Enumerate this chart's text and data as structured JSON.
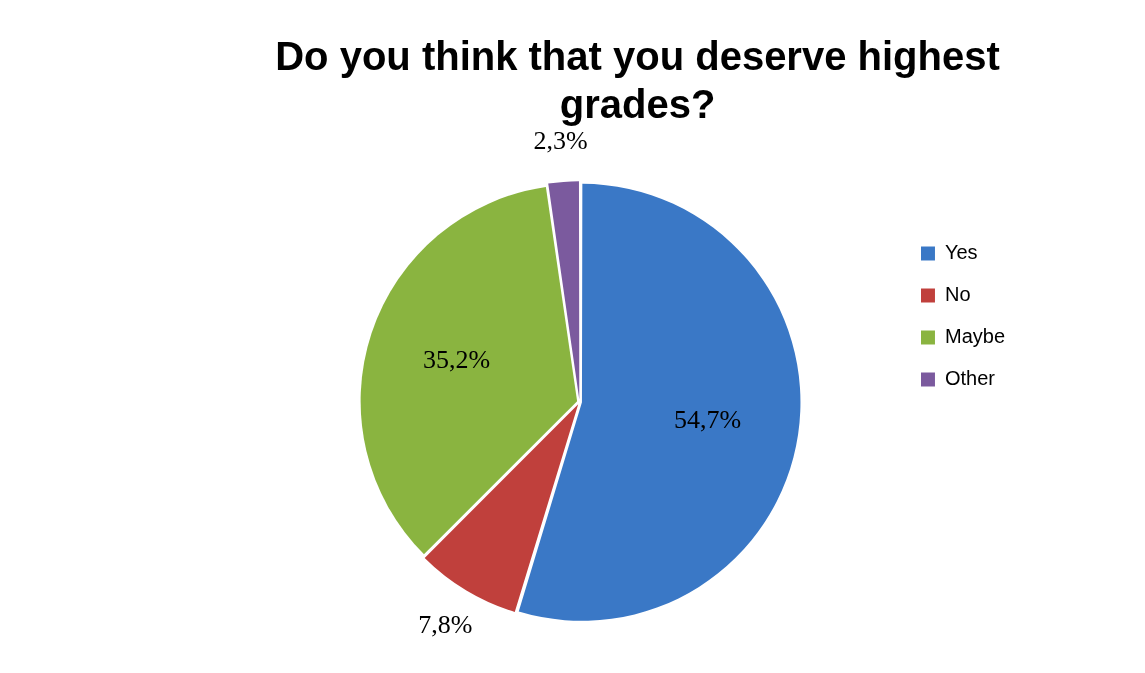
{
  "chart_data": {
    "type": "pie",
    "title": "Do you think that you deserve highest grades?",
    "categories": [
      "Yes",
      "No",
      "Maybe",
      "Other"
    ],
    "values": [
      54.7,
      7.8,
      35.2,
      2.3
    ],
    "value_labels": [
      "54,7%",
      "7,8%",
      "35,2%",
      "2,3%"
    ],
    "colors": [
      "#3a78c6",
      "#c0403c",
      "#8ab440",
      "#7b5a9e"
    ],
    "legend": "right"
  }
}
